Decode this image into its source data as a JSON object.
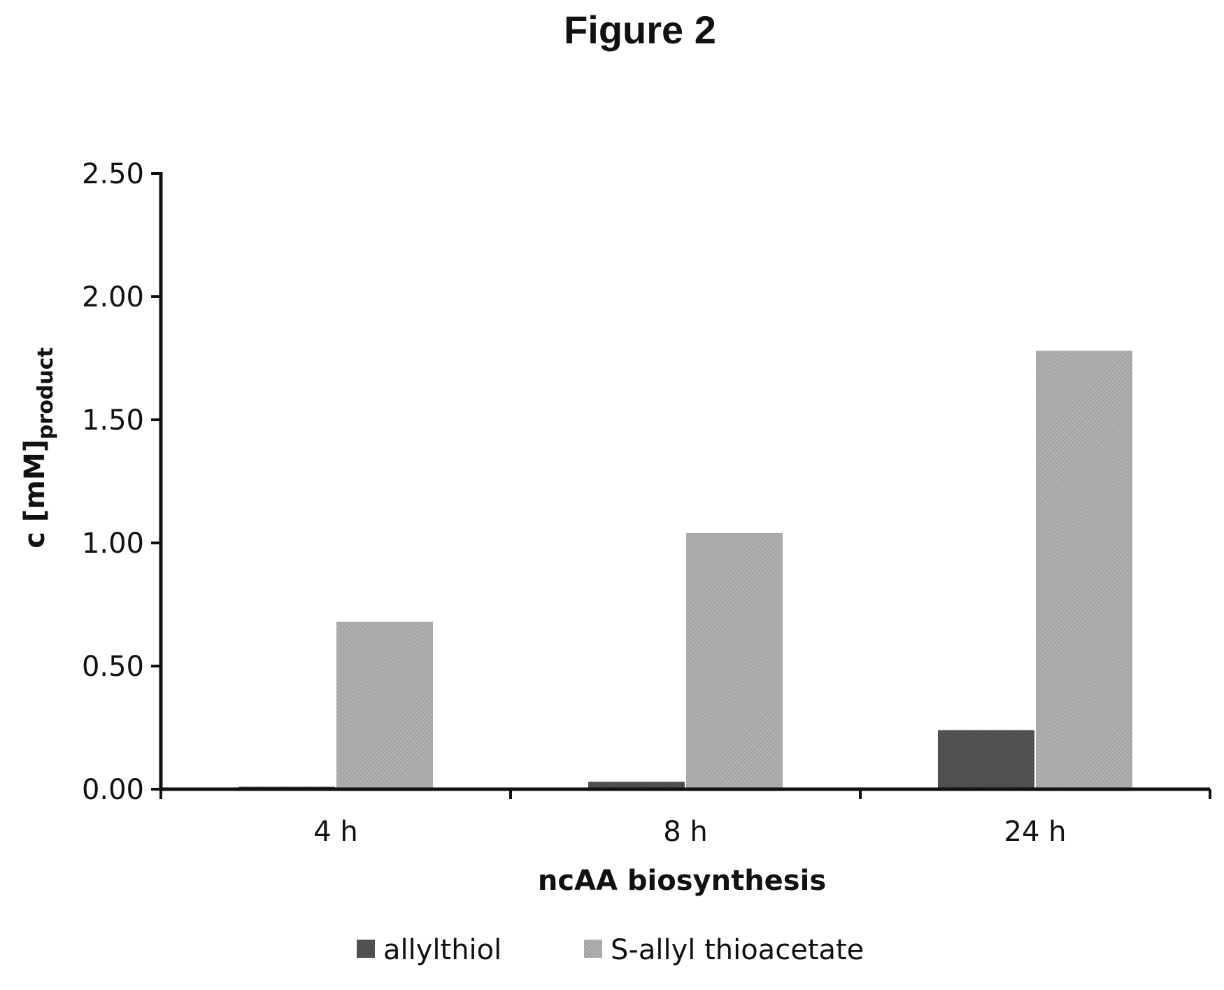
{
  "chart_data": {
    "type": "bar",
    "title": "Figure 2",
    "xlabel": "ncAA biosynthesis",
    "ylabel_main": "c [mM]",
    "ylabel_sub": "product",
    "categories": [
      "4 h",
      "8 h",
      "24 h"
    ],
    "series": [
      {
        "name": "allylthiol",
        "values": [
          0.01,
          0.03,
          0.24
        ],
        "color": "#555555"
      },
      {
        "name": "S-allyl thioacetate",
        "values": [
          0.68,
          1.04,
          1.78
        ],
        "color": "#a9a9a9"
      }
    ],
    "ylim": [
      0,
      2.5
    ],
    "yticks": [
      "0.00",
      "0.50",
      "1.00",
      "1.50",
      "2.00",
      "2.50"
    ],
    "ytick_values": [
      0,
      0.5,
      1.0,
      1.5,
      2.0,
      2.5
    ],
    "grid": false,
    "legend_position": "bottom"
  }
}
